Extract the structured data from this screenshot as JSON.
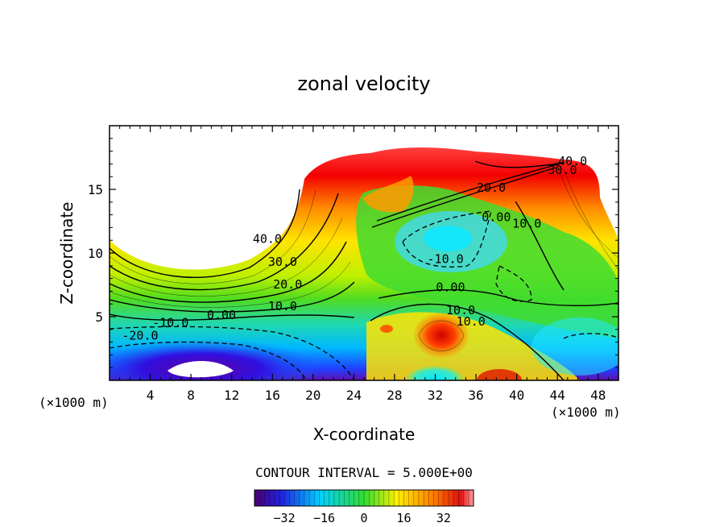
{
  "chart_data": {
    "type": "contour",
    "title": "zonal velocity",
    "xlabel": "X-coordinate",
    "ylabel": "Z-coordinate",
    "x_unit_left": "(×1000 m)",
    "x_unit_right": "(×1000 m)",
    "xlim": [
      0,
      50
    ],
    "ylim": [
      0,
      20
    ],
    "xticks": [
      "4",
      "8",
      "12",
      "16",
      "20",
      "24",
      "28",
      "32",
      "36",
      "40",
      "44",
      "48"
    ],
    "yticks": [
      "5",
      "10",
      "15"
    ],
    "contour_interval_text": "CONTOUR INTERVAL = 5.000E+00",
    "colorbar": {
      "range": [
        -44,
        44
      ],
      "ticks": [
        "-32",
        "-16",
        "0",
        "16",
        "32"
      ]
    },
    "contour_labels": [
      {
        "text": "40.0",
        "x": 15.5,
        "y": 10.8
      },
      {
        "text": "30.0",
        "x": 17.0,
        "y": 9.0
      },
      {
        "text": "20.0",
        "x": 17.5,
        "y": 7.2
      },
      {
        "text": "10.0",
        "x": 17.0,
        "y": 5.5
      },
      {
        "text": "0.00",
        "x": 11.0,
        "y": 4.8
      },
      {
        "text": "-10.0",
        "x": 6.0,
        "y": 4.2
      },
      {
        "text": "-20.0",
        "x": 3.0,
        "y": 3.2
      },
      {
        "text": "-10.0",
        "x": 33.0,
        "y": 9.2
      },
      {
        "text": "0.00",
        "x": 33.5,
        "y": 7.0
      },
      {
        "text": "10.0",
        "x": 34.5,
        "y": 5.2
      },
      {
        "text": "10.0",
        "x": 35.5,
        "y": 4.3
      },
      {
        "text": "20.0",
        "x": 37.5,
        "y": 14.8
      },
      {
        "text": "0.00",
        "x": 38.0,
        "y": 12.5
      },
      {
        "text": "10.0",
        "x": 41.0,
        "y": 12.0
      },
      {
        "text": "30.0",
        "x": 44.5,
        "y": 16.2
      },
      {
        "text": "40.0",
        "x": 45.5,
        "y": 16.9
      }
    ]
  },
  "colors": {
    "cold": "#5a0080",
    "cool": "#00c8ff",
    "neutral": "#40dc20",
    "warm": "#ffe000",
    "hot": "#e81c1c"
  }
}
